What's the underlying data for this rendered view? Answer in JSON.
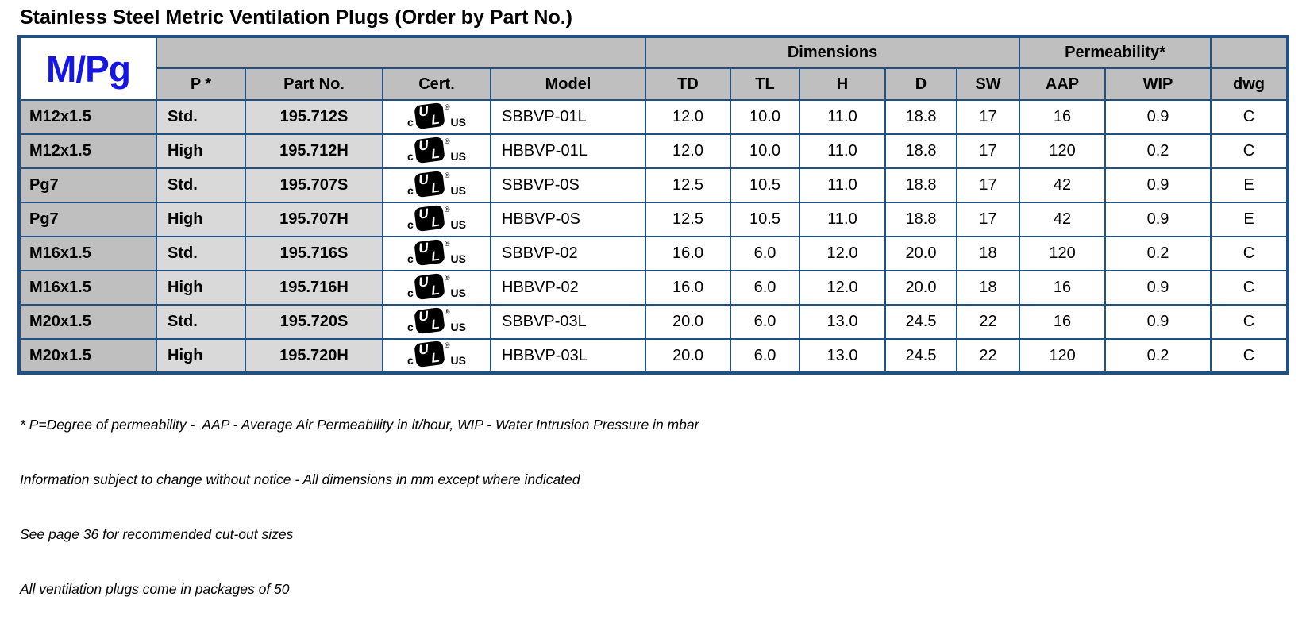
{
  "page": {
    "title": "Stainless Steel Metric Ventilation Plugs (Order by Part No.)"
  },
  "colors": {
    "table_border_navy": "#215081",
    "header_gray": "#BFBFBF",
    "cell_gray": "#D9D9D9",
    "corner_blue": "#1515E6"
  },
  "table": {
    "corner_label": "M/Pg",
    "group_headers": {
      "dimensions": "Dimensions",
      "permeability": "Permeability*"
    },
    "column_headers": {
      "p": "P *",
      "part_no": "Part No.",
      "cert": "Cert.",
      "model": "Model",
      "td": "TD",
      "tl": "TL",
      "h": "H",
      "d": "D",
      "sw": "SW",
      "aap": "AAP",
      "wip": "WIP",
      "dwg": "dwg"
    },
    "cert_mark": {
      "left": "c",
      "letters_u": "U",
      "letters_l": "L",
      "registered": "®",
      "right": "US",
      "meaning": "cULus-certification-mark"
    },
    "rows": [
      {
        "m_pg": "M12x1.5",
        "p": "Std.",
        "part_no": "195.712S",
        "model": "SBBVP-01L",
        "td": "12.0",
        "tl": "10.0",
        "h": "11.0",
        "d": "18.8",
        "sw": "17",
        "aap": "16",
        "wip": "0.9",
        "dwg": "C"
      },
      {
        "m_pg": "M12x1.5",
        "p": "High",
        "part_no": "195.712H",
        "model": "HBBVP-01L",
        "td": "12.0",
        "tl": "10.0",
        "h": "11.0",
        "d": "18.8",
        "sw": "17",
        "aap": "120",
        "wip": "0.2",
        "dwg": "C"
      },
      {
        "m_pg": "Pg7",
        "p": "Std.",
        "part_no": "195.707S",
        "model": "SBBVP-0S",
        "td": "12.5",
        "tl": "10.5",
        "h": "11.0",
        "d": "18.8",
        "sw": "17",
        "aap": "42",
        "wip": "0.9",
        "dwg": "E"
      },
      {
        "m_pg": "Pg7",
        "p": "High",
        "part_no": "195.707H",
        "model": "HBBVP-0S",
        "td": "12.5",
        "tl": "10.5",
        "h": "11.0",
        "d": "18.8",
        "sw": "17",
        "aap": "42",
        "wip": "0.9",
        "dwg": "E"
      },
      {
        "m_pg": "M16x1.5",
        "p": "Std.",
        "part_no": "195.716S",
        "model": "SBBVP-02",
        "td": "16.0",
        "tl": "6.0",
        "h": "12.0",
        "d": "20.0",
        "sw": "18",
        "aap": "120",
        "wip": "0.2",
        "dwg": "C"
      },
      {
        "m_pg": "M16x1.5",
        "p": "High",
        "part_no": "195.716H",
        "model": "HBBVP-02",
        "td": "16.0",
        "tl": "6.0",
        "h": "12.0",
        "d": "20.0",
        "sw": "18",
        "aap": "16",
        "wip": "0.9",
        "dwg": "C"
      },
      {
        "m_pg": "M20x1.5",
        "p": "Std.",
        "part_no": "195.720S",
        "model": "SBBVP-03L",
        "td": "20.0",
        "tl": "6.0",
        "h": "13.0",
        "d": "24.5",
        "sw": "22",
        "aap": "16",
        "wip": "0.9",
        "dwg": "C"
      },
      {
        "m_pg": "M20x1.5",
        "p": "High",
        "part_no": "195.720H",
        "model": "HBBVP-03L",
        "td": "20.0",
        "tl": "6.0",
        "h": "13.0",
        "d": "24.5",
        "sw": "22",
        "aap": "120",
        "wip": "0.2",
        "dwg": "C"
      }
    ]
  },
  "footnotes": [
    "* P=Degree of permeability -  AAP - Average Air Permeability in lt/hour, WIP - Water Intrusion Pressure in mbar",
    "Information subject to change without notice - All dimensions in mm except where indicated",
    "See page 36 for recommended cut-out sizes",
    "All ventilation plugs come in packages of 50"
  ]
}
